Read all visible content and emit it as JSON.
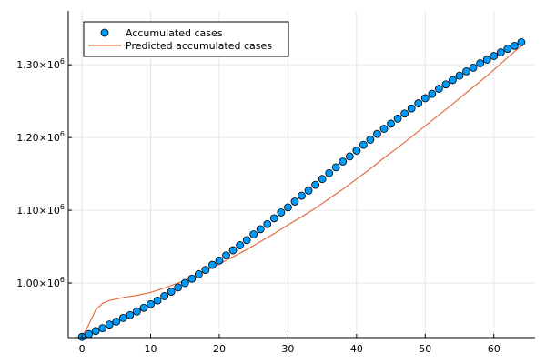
{
  "chart_data": {
    "type": "scatter",
    "title": "",
    "xlabel": "",
    "ylabel": "",
    "xlim": [
      -2,
      66
    ],
    "ylim": [
      925000,
      1374000
    ],
    "grid": true,
    "legend_position": "top-left",
    "x_ticks": [
      0,
      10,
      20,
      30,
      40,
      50,
      60
    ],
    "x_tick_labels": [
      "0",
      "10",
      "20",
      "30",
      "40",
      "50",
      "60"
    ],
    "y_ticks": [
      1000000,
      1100000,
      1200000,
      1300000
    ],
    "y_tick_labels": [
      {
        "mantissa": "1.00×10",
        "exp": "6"
      },
      {
        "mantissa": "1.10×10",
        "exp": "6"
      },
      {
        "mantissa": "1.20×10",
        "exp": "6"
      },
      {
        "mantissa": "1.30×10",
        "exp": "6"
      }
    ],
    "series": [
      {
        "name": "Accumulated cases",
        "kind": "scatter",
        "color": "#009AFA",
        "x": [
          0,
          1,
          2,
          3,
          4,
          5,
          6,
          7,
          8,
          9,
          10,
          11,
          12,
          13,
          14,
          15,
          16,
          17,
          18,
          19,
          20,
          21,
          22,
          23,
          24,
          25,
          26,
          27,
          28,
          29,
          30,
          31,
          32,
          33,
          34,
          35,
          36,
          37,
          38,
          39,
          40,
          41,
          42,
          43,
          44,
          45,
          46,
          47,
          48,
          49,
          50,
          51,
          52,
          53,
          54,
          55,
          56,
          57,
          58,
          59,
          60,
          61,
          62,
          63,
          64
        ],
        "y": [
          926000,
          930000,
          934000,
          938000,
          943000,
          947000,
          952000,
          956000,
          961000,
          966000,
          971000,
          976000,
          982000,
          988000,
          994000,
          1000000,
          1006000,
          1012000,
          1018000,
          1025000,
          1031000,
          1038000,
          1045000,
          1052000,
          1059000,
          1067000,
          1074000,
          1081000,
          1089000,
          1097000,
          1104000,
          1112000,
          1120000,
          1127000,
          1135000,
          1143000,
          1151000,
          1159000,
          1167000,
          1174000,
          1182000,
          1190000,
          1197000,
          1205000,
          1212000,
          1219000,
          1226000,
          1233000,
          1240000,
          1247000,
          1254000,
          1260000,
          1267000,
          1273000,
          1279000,
          1285000,
          1291000,
          1296000,
          1302000,
          1307000,
          1312000,
          1317000,
          1322000,
          1326000,
          1331000
        ]
      },
      {
        "name": "Predicted accumulated cases",
        "kind": "line",
        "color": "#E26F46",
        "x": [
          0,
          1,
          2,
          3,
          4,
          5,
          6,
          7,
          8,
          10,
          12,
          14,
          16,
          18,
          20,
          22,
          24,
          26,
          28,
          30,
          32,
          34,
          36,
          38,
          40,
          42,
          44,
          46,
          48,
          50,
          52,
          54,
          56,
          58,
          60,
          62,
          64
        ],
        "y": [
          926000,
          943000,
          963000,
          972000,
          976000,
          978000,
          980000,
          981500,
          983000,
          987000,
          993000,
          1000000,
          1008000,
          1017000,
          1026000,
          1036000,
          1046000,
          1057000,
          1068000,
          1080000,
          1091000,
          1103000,
          1116000,
          1129000,
          1143000,
          1157000,
          1172000,
          1186000,
          1201000,
          1216000,
          1231000,
          1246000,
          1262000,
          1277000,
          1293000,
          1310000,
          1326000
        ]
      }
    ]
  }
}
